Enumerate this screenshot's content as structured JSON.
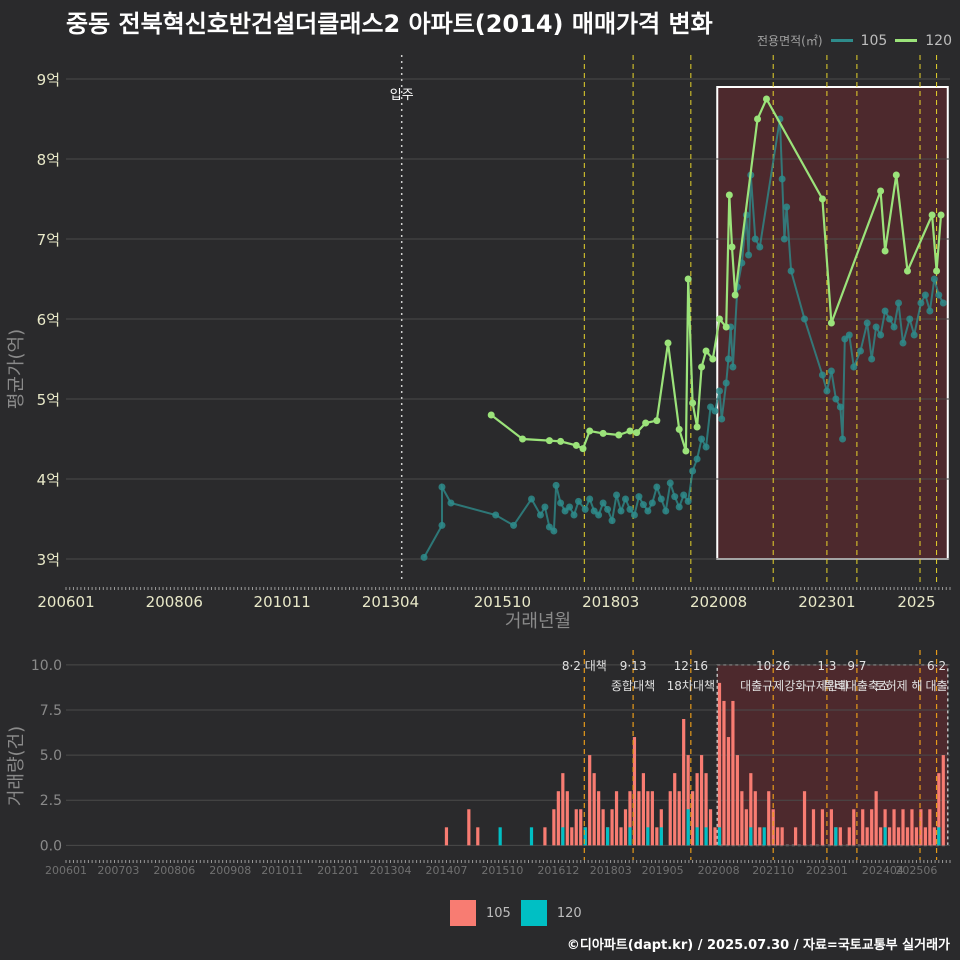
{
  "title": "중동 전북혁신호반건설더클래스2 아파트(2014) 매매가격 변화",
  "footer": "©디아파트(dapt.kr) / 2025.07.30 / 자료=국토교통부 실거래가",
  "colors": {
    "s105": "#2e8b8b",
    "s120": "#9be37a",
    "bar105": "#f87c72",
    "bar120": "#00bfc4",
    "policy": "#e6d32b",
    "shade": "#5a2a2d",
    "bg": "#2a2a2c",
    "grid": "#4a4a4a"
  },
  "legend_top": {
    "label": "전용면적(㎡)",
    "s105": "105",
    "s120": "120"
  },
  "legend_bottom": {
    "s105": "105",
    "s120": "120"
  },
  "chart_data": [
    {
      "type": "line",
      "title": "매매가격",
      "xlabel": "거래년월",
      "ylabel": "평균가(억)",
      "ylim": [
        2.7,
        9.3
      ],
      "xlim": [
        2006.0,
        2025.75
      ],
      "yticks": [
        3,
        4,
        5,
        6,
        7,
        8,
        9
      ],
      "ytick_labels": [
        "3억",
        "4억",
        "5억",
        "6억",
        "7억",
        "8억",
        "9억"
      ],
      "xticks": [
        2006.0,
        2008.42,
        2010.83,
        2013.25,
        2015.75,
        2018.17,
        2020.58,
        2023.0,
        2025.0
      ],
      "xtick_labels": [
        "200601",
        "200806",
        "201011",
        "201304",
        "201510",
        "201803",
        "202008",
        "202301",
        "2025"
      ],
      "annotations": [
        {
          "x": 2013.5,
          "label": "입주"
        }
      ],
      "policy_lines": [
        2017.58,
        2018.67,
        2019.96,
        2021.8,
        2023.0,
        2023.67,
        2025.08,
        2025.45
      ],
      "highlight_range": [
        2020.55,
        2025.7
      ],
      "series": [
        {
          "name": "105",
          "points": [
            [
              2014.0,
              3.02
            ],
            [
              2014.4,
              3.42
            ],
            [
              2014.4,
              3.9
            ],
            [
              2014.6,
              3.7
            ],
            [
              2015.6,
              3.55
            ],
            [
              2016.0,
              3.42
            ],
            [
              2016.4,
              3.75
            ],
            [
              2016.6,
              3.55
            ],
            [
              2016.7,
              3.65
            ],
            [
              2016.8,
              3.4
            ],
            [
              2016.9,
              3.35
            ],
            [
              2016.95,
              3.92
            ],
            [
              2017.05,
              3.7
            ],
            [
              2017.15,
              3.6
            ],
            [
              2017.25,
              3.65
            ],
            [
              2017.35,
              3.55
            ],
            [
              2017.45,
              3.72
            ],
            [
              2017.6,
              3.62
            ],
            [
              2017.7,
              3.75
            ],
            [
              2017.8,
              3.6
            ],
            [
              2017.9,
              3.55
            ],
            [
              2018.0,
              3.7
            ],
            [
              2018.1,
              3.62
            ],
            [
              2018.2,
              3.48
            ],
            [
              2018.3,
              3.8
            ],
            [
              2018.4,
              3.6
            ],
            [
              2018.5,
              3.75
            ],
            [
              2018.6,
              3.62
            ],
            [
              2018.7,
              3.55
            ],
            [
              2018.8,
              3.78
            ],
            [
              2018.9,
              3.68
            ],
            [
              2019.0,
              3.6
            ],
            [
              2019.1,
              3.7
            ],
            [
              2019.2,
              3.9
            ],
            [
              2019.3,
              3.75
            ],
            [
              2019.4,
              3.6
            ],
            [
              2019.5,
              3.95
            ],
            [
              2019.6,
              3.78
            ],
            [
              2019.7,
              3.65
            ],
            [
              2019.8,
              3.8
            ],
            [
              2019.9,
              3.72
            ],
            [
              2020.0,
              4.1
            ],
            [
              2020.1,
              4.25
            ],
            [
              2020.2,
              4.5
            ],
            [
              2020.3,
              4.4
            ],
            [
              2020.4,
              4.9
            ],
            [
              2020.5,
              4.85
            ],
            [
              2020.6,
              5.1
            ],
            [
              2020.65,
              4.75
            ],
            [
              2020.75,
              5.2
            ],
            [
              2020.8,
              5.5
            ],
            [
              2020.85,
              5.9
            ],
            [
              2020.9,
              5.4
            ],
            [
              2021.0,
              6.4
            ],
            [
              2021.1,
              6.7
            ],
            [
              2021.2,
              7.3
            ],
            [
              2021.25,
              6.8
            ],
            [
              2021.3,
              7.8
            ],
            [
              2021.4,
              7.0
            ],
            [
              2021.5,
              6.9
            ],
            [
              2021.95,
              8.5
            ],
            [
              2022.0,
              7.75
            ],
            [
              2022.05,
              7.0
            ],
            [
              2022.1,
              7.4
            ],
            [
              2022.2,
              6.6
            ],
            [
              2022.5,
              6.0
            ],
            [
              2022.9,
              5.3
            ],
            [
              2023.0,
              5.1
            ],
            [
              2023.1,
              5.35
            ],
            [
              2023.2,
              5.0
            ],
            [
              2023.3,
              4.9
            ],
            [
              2023.35,
              4.5
            ],
            [
              2023.4,
              5.75
            ],
            [
              2023.5,
              5.8
            ],
            [
              2023.6,
              5.4
            ],
            [
              2023.75,
              5.6
            ],
            [
              2023.9,
              5.95
            ],
            [
              2024.0,
              5.5
            ],
            [
              2024.1,
              5.9
            ],
            [
              2024.2,
              5.8
            ],
            [
              2024.3,
              6.1
            ],
            [
              2024.4,
              6.0
            ],
            [
              2024.5,
              5.9
            ],
            [
              2024.6,
              6.2
            ],
            [
              2024.7,
              5.7
            ],
            [
              2024.85,
              6.0
            ],
            [
              2024.95,
              5.8
            ],
            [
              2025.1,
              6.2
            ],
            [
              2025.2,
              6.3
            ],
            [
              2025.3,
              6.1
            ],
            [
              2025.4,
              6.5
            ],
            [
              2025.5,
              6.3
            ],
            [
              2025.6,
              6.2
            ]
          ]
        },
        {
          "name": "120",
          "points": [
            [
              2015.5,
              4.8
            ],
            [
              2016.2,
              4.5
            ],
            [
              2016.8,
              4.48
            ],
            [
              2017.05,
              4.47
            ],
            [
              2017.4,
              4.42
            ],
            [
              2017.55,
              4.38
            ],
            [
              2017.7,
              4.6
            ],
            [
              2018.0,
              4.57
            ],
            [
              2018.35,
              4.55
            ],
            [
              2018.6,
              4.6
            ],
            [
              2018.75,
              4.58
            ],
            [
              2018.95,
              4.7
            ],
            [
              2019.2,
              4.73
            ],
            [
              2019.45,
              5.7
            ],
            [
              2019.7,
              4.62
            ],
            [
              2019.85,
              4.35
            ],
            [
              2019.9,
              6.5
            ],
            [
              2020.0,
              4.95
            ],
            [
              2020.1,
              4.65
            ],
            [
              2020.2,
              5.4
            ],
            [
              2020.3,
              5.6
            ],
            [
              2020.45,
              5.5
            ],
            [
              2020.6,
              6.0
            ],
            [
              2020.75,
              5.9
            ],
            [
              2020.82,
              7.55
            ],
            [
              2020.88,
              6.9
            ],
            [
              2020.95,
              6.3
            ],
            [
              2021.45,
              8.5
            ],
            [
              2021.65,
              8.75
            ],
            [
              2022.9,
              7.5
            ],
            [
              2023.1,
              5.95
            ],
            [
              2024.2,
              7.6
            ],
            [
              2024.3,
              6.85
            ],
            [
              2024.55,
              7.8
            ],
            [
              2024.8,
              6.6
            ],
            [
              2025.35,
              7.3
            ],
            [
              2025.45,
              6.6
            ],
            [
              2025.55,
              7.3
            ]
          ]
        }
      ]
    },
    {
      "type": "bar",
      "title": "거래량",
      "ylabel": "거래량(건)",
      "ylim": [
        -0.7,
        10.6
      ],
      "yticks": [
        0,
        2.5,
        5,
        7.5,
        10
      ],
      "ytick_labels": [
        "0.0",
        "2.5",
        "5.0",
        "7.5",
        "10.0"
      ],
      "xticks": [
        2006.0,
        2007.17,
        2008.42,
        2009.67,
        2010.83,
        2012.08,
        2013.25,
        2014.5,
        2015.75,
        2017.0,
        2018.17,
        2019.33,
        2020.58,
        2021.8,
        2023.0,
        2024.25,
        2025.0
      ],
      "xtick_labels": [
        "200601",
        "200703",
        "200806",
        "200908",
        "201011",
        "201201",
        "201304",
        "201407",
        "201510",
        "201612",
        "201803",
        "201905",
        "202008",
        "202110",
        "202301",
        "202404",
        "202506"
      ],
      "policy_lines": [
        2017.58,
        2018.67,
        2019.96,
        2021.8,
        2023.0,
        2023.67,
        2025.08,
        2025.45
      ],
      "policy_labels": [
        {
          "x": 2017.58,
          "line1": "8·2 대책",
          "line2": ""
        },
        {
          "x": 2018.67,
          "line1": "9·13",
          "line2": "종합대책"
        },
        {
          "x": 2019.96,
          "line1": "12·16",
          "line2": "18차대책"
        },
        {
          "x": 2021.8,
          "line1": "10·26",
          "line2": "대출규제강화"
        },
        {
          "x": 2023.0,
          "line1": "1·3",
          "line2": "규제완화"
        },
        {
          "x": 2023.67,
          "line1": "9·7",
          "line2": "특례대출축소"
        },
        {
          "x": 2024.6,
          "line1": "",
          "line2": "토허제 해"
        },
        {
          "x": 2025.45,
          "line1": "6·2",
          "line2": "대출"
        }
      ],
      "highlight_range": [
        2020.55,
        2025.7
      ],
      "series": [
        {
          "name": "105",
          "bars": [
            [
              2014.5,
              1
            ],
            [
              2015.0,
              2
            ],
            [
              2015.2,
              1
            ],
            [
              2016.7,
              1
            ],
            [
              2016.9,
              2
            ],
            [
              2017.0,
              3
            ],
            [
              2017.1,
              4
            ],
            [
              2017.2,
              3
            ],
            [
              2017.3,
              1
            ],
            [
              2017.4,
              2
            ],
            [
              2017.5,
              2
            ],
            [
              2017.6,
              1
            ],
            [
              2017.7,
              5
            ],
            [
              2017.8,
              4
            ],
            [
              2017.9,
              3
            ],
            [
              2018.0,
              2
            ],
            [
              2018.1,
              1
            ],
            [
              2018.2,
              2
            ],
            [
              2018.3,
              3
            ],
            [
              2018.4,
              1
            ],
            [
              2018.5,
              2
            ],
            [
              2018.6,
              3
            ],
            [
              2018.7,
              6
            ],
            [
              2018.8,
              3
            ],
            [
              2018.9,
              4
            ],
            [
              2019.0,
              3
            ],
            [
              2019.1,
              3
            ],
            [
              2019.2,
              1
            ],
            [
              2019.3,
              2
            ],
            [
              2019.5,
              3
            ],
            [
              2019.6,
              4
            ],
            [
              2019.7,
              3
            ],
            [
              2019.8,
              7
            ],
            [
              2019.9,
              5
            ],
            [
              2020.0,
              3
            ],
            [
              2020.1,
              4
            ],
            [
              2020.2,
              5
            ],
            [
              2020.3,
              4
            ],
            [
              2020.4,
              2
            ],
            [
              2020.5,
              1
            ],
            [
              2020.6,
              9
            ],
            [
              2020.7,
              8
            ],
            [
              2020.8,
              6
            ],
            [
              2020.9,
              8
            ],
            [
              2021.0,
              5
            ],
            [
              2021.1,
              3
            ],
            [
              2021.2,
              2
            ],
            [
              2021.3,
              4
            ],
            [
              2021.4,
              3
            ],
            [
              2021.5,
              1
            ],
            [
              2021.7,
              3
            ],
            [
              2021.8,
              2
            ],
            [
              2021.9,
              1
            ],
            [
              2022.0,
              1
            ],
            [
              2022.3,
              1
            ],
            [
              2022.5,
              3
            ],
            [
              2022.7,
              2
            ],
            [
              2022.9,
              2
            ],
            [
              2023.1,
              2
            ],
            [
              2023.2,
              1
            ],
            [
              2023.3,
              1
            ],
            [
              2023.5,
              1
            ],
            [
              2023.6,
              2
            ],
            [
              2023.8,
              2
            ],
            [
              2023.9,
              1
            ],
            [
              2024.0,
              2
            ],
            [
              2024.1,
              3
            ],
            [
              2024.2,
              1
            ],
            [
              2024.3,
              2
            ],
            [
              2024.4,
              1
            ],
            [
              2024.5,
              2
            ],
            [
              2024.6,
              1
            ],
            [
              2024.7,
              2
            ],
            [
              2024.8,
              1
            ],
            [
              2024.9,
              2
            ],
            [
              2025.0,
              1
            ],
            [
              2025.1,
              2
            ],
            [
              2025.2,
              1
            ],
            [
              2025.3,
              2
            ],
            [
              2025.4,
              1
            ],
            [
              2025.5,
              4
            ],
            [
              2025.6,
              5
            ]
          ]
        },
        {
          "name": "120",
          "bars": [
            [
              2015.7,
              1
            ],
            [
              2016.4,
              1
            ],
            [
              2017.1,
              1
            ],
            [
              2017.6,
              1
            ],
            [
              2018.1,
              1
            ],
            [
              2018.6,
              1
            ],
            [
              2019.0,
              1
            ],
            [
              2019.3,
              1
            ],
            [
              2019.9,
              2
            ],
            [
              2020.1,
              1
            ],
            [
              2020.3,
              1
            ],
            [
              2020.6,
              1
            ],
            [
              2021.3,
              1
            ],
            [
              2021.6,
              1
            ],
            [
              2023.2,
              1
            ],
            [
              2024.3,
              1
            ],
            [
              2025.5,
              1
            ]
          ]
        }
      ]
    }
  ]
}
